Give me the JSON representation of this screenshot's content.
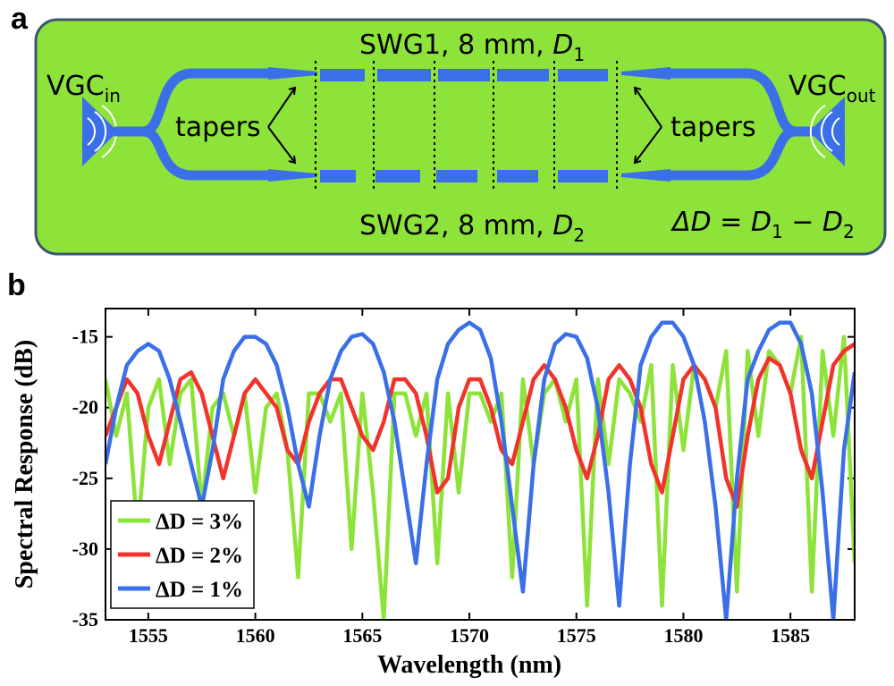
{
  "panel_a": {
    "letter": "a",
    "background_color": "#8ee33a",
    "waveguide_color": "#3b6fe8",
    "vgc_in": {
      "base": "VGC",
      "sub": "in"
    },
    "vgc_out": {
      "base": "VGC",
      "sub": "out"
    },
    "tapers_left": "tapers",
    "tapers_right": "tapers",
    "swg1": {
      "prefix": "SWG1, 8 mm, ",
      "var": "D",
      "sub": "1"
    },
    "swg2": {
      "prefix": "SWG2, 8 mm, ",
      "var": "D",
      "sub": "2"
    },
    "delta": {
      "lhs": "ΔD",
      "eq": " = ",
      "d1": "D",
      "s1": "1",
      "minus": " − ",
      "d2": "D",
      "s2": "2"
    }
  },
  "panel_b": {
    "letter": "b"
  },
  "chart_data": {
    "type": "line",
    "xlabel": "Wavelength (nm)",
    "ylabel": "Spectral Response (dB)",
    "xlim": [
      1553,
      1588
    ],
    "ylim": [
      -35,
      -13
    ],
    "xticks": [
      1555,
      1560,
      1565,
      1570,
      1575,
      1580,
      1585
    ],
    "yticks": [
      -15,
      -20,
      -25,
      -30,
      -35
    ],
    "legend_position": "bottom-left",
    "series": [
      {
        "name": "ΔD = 3%",
        "color": "#8ee33a",
        "x": [
          1553.0,
          1553.5,
          1554.0,
          1554.5,
          1555.0,
          1555.5,
          1556.0,
          1556.5,
          1557.0,
          1557.5,
          1558.0,
          1558.5,
          1559.0,
          1559.5,
          1560.0,
          1560.5,
          1561.0,
          1561.5,
          1562.0,
          1562.5,
          1563.0,
          1563.5,
          1564.0,
          1564.5,
          1565.0,
          1565.5,
          1566.0,
          1566.5,
          1567.0,
          1567.5,
          1568.0,
          1568.5,
          1569.0,
          1569.5,
          1570.0,
          1570.5,
          1571.0,
          1571.5,
          1572.0,
          1572.5,
          1573.0,
          1573.5,
          1574.0,
          1574.5,
          1575.0,
          1575.5,
          1576.0,
          1576.5,
          1577.0,
          1577.5,
          1578.0,
          1578.5,
          1579.0,
          1579.5,
          1580.0,
          1580.5,
          1581.0,
          1581.5,
          1582.0,
          1582.5,
          1583.0,
          1583.5,
          1584.0,
          1584.5,
          1585.0,
          1585.5,
          1586.0,
          1586.5,
          1587.0,
          1587.5,
          1588.0
        ],
        "y": [
          -18,
          -22,
          -19,
          -29,
          -20,
          -18,
          -24,
          -19,
          -18,
          -27,
          -20,
          -19,
          -22,
          -19,
          -26,
          -20,
          -19,
          -23,
          -32,
          -19,
          -19,
          -21,
          -19,
          -30,
          -19,
          -26,
          -35,
          -19,
          -19,
          -22,
          -19,
          -31,
          -19,
          -26,
          -19,
          -19,
          -21,
          -19,
          -32,
          -18,
          -24,
          -19,
          -18,
          -21,
          -18,
          -34,
          -18,
          -24,
          -18,
          -19,
          -21,
          -17,
          -34,
          -17,
          -23,
          -17,
          -18,
          -20,
          -16,
          -33,
          -16,
          -22,
          -16,
          -17,
          -19,
          -15,
          -33,
          -16,
          -22,
          -15,
          -31
        ]
      },
      {
        "name": "ΔD = 2%",
        "color": "#f2332c",
        "x": [
          1553.0,
          1553.5,
          1554.0,
          1554.5,
          1555.0,
          1555.5,
          1556.0,
          1556.5,
          1557.0,
          1557.5,
          1558.0,
          1558.5,
          1559.0,
          1559.5,
          1560.0,
          1560.5,
          1561.0,
          1561.5,
          1562.0,
          1562.5,
          1563.0,
          1563.5,
          1564.0,
          1564.5,
          1565.0,
          1565.5,
          1566.0,
          1566.5,
          1567.0,
          1567.5,
          1568.0,
          1568.5,
          1569.0,
          1569.5,
          1570.0,
          1570.5,
          1571.0,
          1571.5,
          1572.0,
          1572.5,
          1573.0,
          1573.5,
          1574.0,
          1574.5,
          1575.0,
          1575.5,
          1576.0,
          1576.5,
          1577.0,
          1577.5,
          1578.0,
          1578.5,
          1579.0,
          1579.5,
          1580.0,
          1580.5,
          1581.0,
          1581.5,
          1582.0,
          1582.5,
          1583.0,
          1583.5,
          1584.0,
          1584.5,
          1585.0,
          1585.5,
          1586.0,
          1586.5,
          1587.0,
          1587.5,
          1588.0
        ],
        "y": [
          -22,
          -20,
          -18,
          -19,
          -22,
          -24,
          -21,
          -18,
          -17.5,
          -19,
          -22,
          -25,
          -22,
          -19,
          -18,
          -19,
          -20,
          -23,
          -24,
          -21,
          -19,
          -18,
          -18,
          -20,
          -22,
          -23,
          -21,
          -18,
          -18,
          -19,
          -22,
          -26,
          -25,
          -20,
          -18,
          -18,
          -20,
          -23,
          -24,
          -21,
          -18,
          -17,
          -18,
          -20,
          -23,
          -25,
          -22,
          -18,
          -17,
          -18,
          -20,
          -24,
          -26,
          -22,
          -18,
          -17,
          -18,
          -20,
          -25,
          -27,
          -22,
          -18,
          -16.5,
          -17,
          -19,
          -23,
          -25,
          -21,
          -17,
          -16,
          -15.5
        ]
      },
      {
        "name": "ΔD = 1%",
        "color": "#3b6fe8",
        "x": [
          1553.0,
          1553.5,
          1554.0,
          1554.5,
          1555.0,
          1555.5,
          1556.0,
          1556.5,
          1557.0,
          1557.5,
          1558.0,
          1558.5,
          1559.0,
          1559.5,
          1560.0,
          1560.5,
          1561.0,
          1561.5,
          1562.0,
          1562.5,
          1563.0,
          1563.5,
          1564.0,
          1564.5,
          1565.0,
          1565.5,
          1566.0,
          1566.5,
          1567.0,
          1567.5,
          1568.0,
          1568.5,
          1569.0,
          1569.5,
          1570.0,
          1570.5,
          1571.0,
          1571.5,
          1572.0,
          1572.5,
          1573.0,
          1573.5,
          1574.0,
          1574.5,
          1575.0,
          1575.5,
          1576.0,
          1576.5,
          1577.0,
          1577.5,
          1578.0,
          1578.5,
          1579.0,
          1579.5,
          1580.0,
          1580.5,
          1581.0,
          1581.5,
          1582.0,
          1582.5,
          1583.0,
          1583.5,
          1584.0,
          1584.5,
          1585.0,
          1585.5,
          1586.0,
          1586.5,
          1587.0,
          1587.5,
          1588.0
        ],
        "y": [
          -24,
          -20,
          -17,
          -16,
          -15.5,
          -16,
          -18,
          -21,
          -24,
          -27,
          -23,
          -18,
          -16,
          -15,
          -15,
          -15.5,
          -17,
          -20,
          -24,
          -27,
          -22,
          -18,
          -16,
          -15,
          -14.8,
          -15.5,
          -17.5,
          -21,
          -26,
          -31,
          -24,
          -18,
          -15.5,
          -14.5,
          -14,
          -14.5,
          -16.5,
          -21,
          -27,
          -33,
          -24,
          -18,
          -15.5,
          -14.8,
          -15,
          -16.5,
          -20,
          -26,
          -34,
          -24,
          -17,
          -15,
          -14,
          -14,
          -15,
          -17,
          -21,
          -27,
          -35,
          -25,
          -18,
          -16,
          -14.5,
          -14,
          -14,
          -15.5,
          -19,
          -26,
          -35,
          -23,
          -17.5
        ]
      }
    ]
  }
}
